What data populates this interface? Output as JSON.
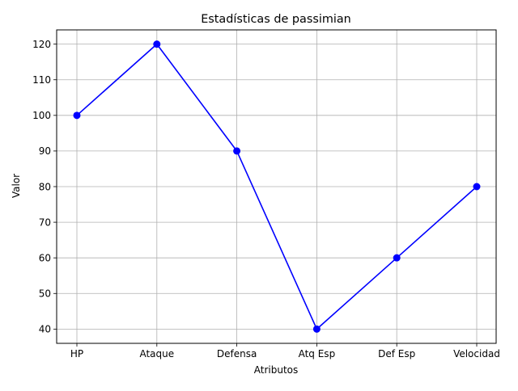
{
  "chart_data": {
    "type": "line",
    "title": "Estadísticas de passimian",
    "xlabel": "Atributos",
    "ylabel": "Valor",
    "categories": [
      "HP",
      "Ataque",
      "Defensa",
      "Atq Esp",
      "Def Esp",
      "Velocidad"
    ],
    "series": [
      {
        "values": [
          100,
          120,
          90,
          40,
          60,
          80
        ],
        "color": "#0000ff",
        "marker": "circle"
      }
    ],
    "ylim": [
      36,
      124
    ],
    "yticks": [
      40,
      50,
      60,
      70,
      80,
      90,
      100,
      110,
      120
    ],
    "grid": true
  }
}
